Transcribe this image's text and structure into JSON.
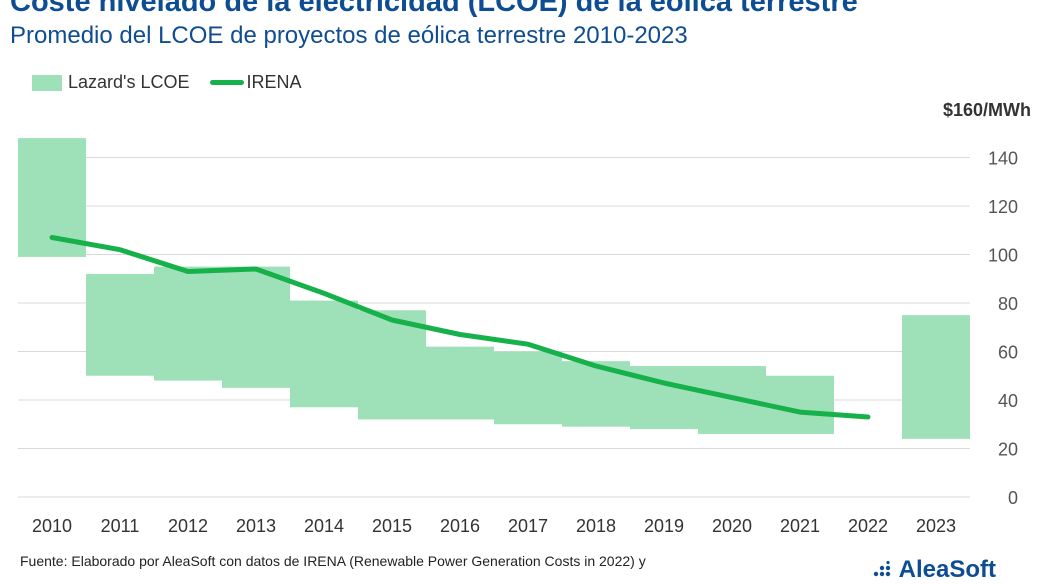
{
  "header": {
    "title": "Coste nivelado de la electricidad (LCOE) de la eólica terrestre",
    "subtitle": "Promedio del LCOE de proyectos de eólica terrestre 2010-2023"
  },
  "footer": {
    "source": "Fuente: Elaborado por AleaSoft con datos de IRENA (Renewable Power Generation Costs in 2022) y",
    "logo": "AleaSoft"
  },
  "colors": {
    "band": "#9ee0b7",
    "line": "#16b14a",
    "brand": "#0f4d92"
  },
  "chart_data": {
    "type": "bar",
    "title": "Coste nivelado de la electricidad (LCOE) de la eólica terrestre",
    "subtitle": "Promedio del LCOE de proyectos de eólica terrestre 2010-2023",
    "unit_label": "$160/MWh",
    "categories": [
      "2010",
      "2011",
      "2012",
      "2013",
      "2014",
      "2015",
      "2016",
      "2017",
      "2018",
      "2019",
      "2020",
      "2021",
      "2022",
      "2023"
    ],
    "legend": [
      "Lazard's LCOE",
      "IRENA"
    ],
    "legend_position": "top-left",
    "y_axis_side": "right",
    "ylim": [
      0,
      160
    ],
    "yticks": [
      0,
      20,
      40,
      60,
      80,
      100,
      120,
      140
    ],
    "grid": true,
    "series": [
      {
        "name": "Lazard's LCOE",
        "type": "floating-bar",
        "low": [
          99,
          50,
          48,
          45,
          37,
          32,
          32,
          30,
          29,
          28,
          26,
          26,
          null,
          24
        ],
        "high": [
          148,
          92,
          95,
          95,
          81,
          77,
          62,
          60,
          56,
          54,
          54,
          50,
          null,
          75
        ]
      },
      {
        "name": "IRENA",
        "type": "line",
        "values": [
          107,
          102,
          93,
          94,
          84,
          73,
          67,
          63,
          54,
          47,
          41,
          35,
          33,
          null
        ]
      }
    ]
  }
}
